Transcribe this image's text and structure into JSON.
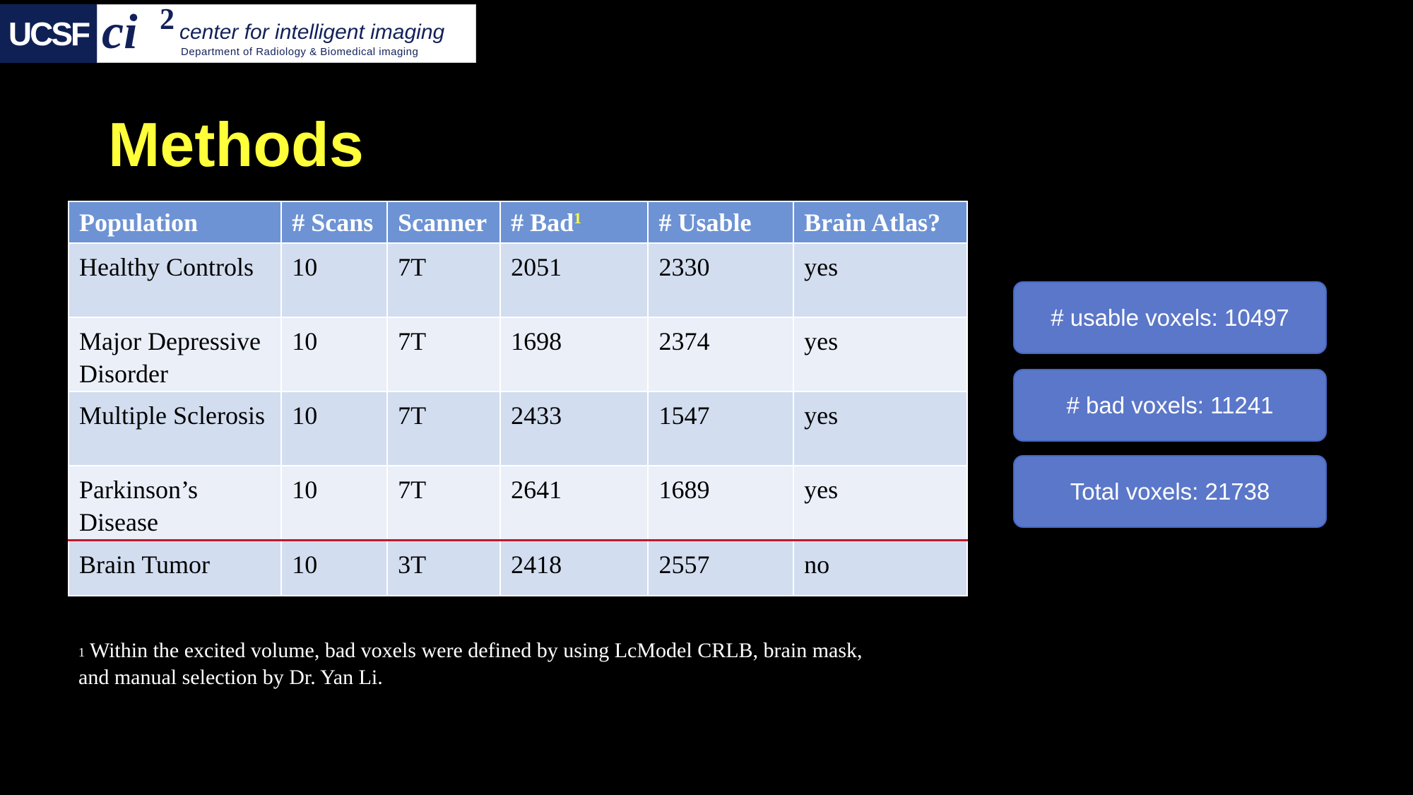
{
  "logo": {
    "ucsf": "UCSF",
    "ci2_mark": "ci",
    "ci2_sup": "2",
    "ci2_name": "center for intelligent imaging",
    "ci2_dept": "Department of Radiology & Biomedical imaging"
  },
  "title": "Methods",
  "table": {
    "headers": [
      "Population",
      "# Scans",
      "Scanner",
      "# Bad",
      "# Usable",
      "Brain Atlas?"
    ],
    "bad_footnote_marker": "1",
    "rows": [
      [
        "Healthy Controls",
        "10",
        "7T",
        "2051",
        "2330",
        "yes"
      ],
      [
        "Major Depressive Disorder",
        "10",
        "7T",
        "1698",
        "2374",
        "yes"
      ],
      [
        "Multiple Sclerosis",
        "10",
        "7T",
        "2433",
        "1547",
        "yes"
      ],
      [
        "Parkinson’s Disease",
        "10",
        "7T",
        "2641",
        "1689",
        "yes"
      ],
      [
        "Brain Tumor",
        "10",
        "3T",
        "2418",
        "2557",
        "no"
      ]
    ]
  },
  "footnote": {
    "marker": "1",
    "text": "Within the excited volume, bad voxels were defined by using LcModel CRLB, brain mask, and manual selection by Dr. Yan Li."
  },
  "stats": {
    "usable": "# usable voxels: 10497",
    "bad": "# bad voxels: 11241",
    "total": "Total voxels: 21738"
  },
  "colors": {
    "title": "#ffff3a",
    "header_bg": "#6d93d4",
    "row_odd": "#d2ddef",
    "row_even": "#eaeff8",
    "separator": "#c0182a",
    "stat_box": "#5b77c9"
  }
}
